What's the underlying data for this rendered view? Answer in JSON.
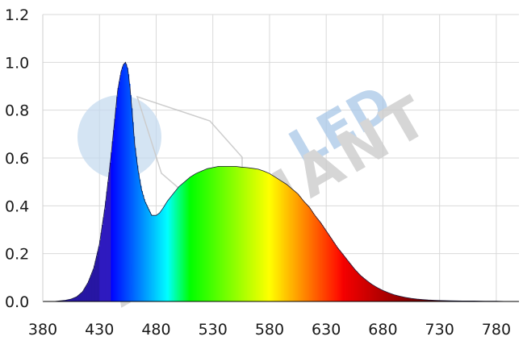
{
  "chart_data": {
    "type": "area",
    "title": "",
    "xlabel": "",
    "ylabel": "",
    "xlim": [
      380,
      800
    ],
    "ylim": [
      0,
      1.2
    ],
    "x_ticks": [
      "380",
      "430",
      "480",
      "530",
      "580",
      "630",
      "680",
      "730",
      "780"
    ],
    "y_ticks": [
      "0.0",
      "0.2",
      "0.4",
      "0.6",
      "0.8",
      "1.0",
      "1.2"
    ],
    "grid": true,
    "fill": "wavelength-colored spectrum",
    "series": [
      {
        "x": [
          380,
          390,
          400,
          405,
          410,
          415,
          420,
          425,
          430,
          435,
          440,
          443,
          446,
          449,
          451,
          453,
          455,
          457,
          459,
          461,
          464,
          467,
          470,
          473,
          476,
          480,
          483,
          486,
          490,
          495,
          500,
          505,
          510,
          515,
          520,
          525,
          530,
          535,
          540,
          545,
          550,
          555,
          560,
          565,
          570,
          575,
          580,
          585,
          590,
          595,
          600,
          605,
          610,
          615,
          620,
          625,
          630,
          635,
          640,
          645,
          650,
          655,
          660,
          665,
          670,
          675,
          680,
          685,
          690,
          695,
          700,
          705,
          710,
          715,
          720,
          725,
          730,
          740,
          750,
          760,
          770,
          780,
          790,
          800
        ],
        "values": [
          0.0,
          0.0,
          0.005,
          0.01,
          0.02,
          0.04,
          0.08,
          0.14,
          0.24,
          0.4,
          0.6,
          0.74,
          0.88,
          0.96,
          0.99,
          1.0,
          0.97,
          0.89,
          0.78,
          0.66,
          0.55,
          0.47,
          0.42,
          0.39,
          0.36,
          0.36,
          0.37,
          0.39,
          0.42,
          0.45,
          0.48,
          0.5,
          0.52,
          0.535,
          0.545,
          0.555,
          0.56,
          0.565,
          0.565,
          0.565,
          0.565,
          0.562,
          0.56,
          0.557,
          0.553,
          0.545,
          0.535,
          0.52,
          0.505,
          0.49,
          0.47,
          0.45,
          0.42,
          0.395,
          0.36,
          0.33,
          0.295,
          0.26,
          0.225,
          0.195,
          0.165,
          0.135,
          0.11,
          0.09,
          0.072,
          0.058,
          0.046,
          0.036,
          0.028,
          0.022,
          0.017,
          0.013,
          0.01,
          0.008,
          0.006,
          0.005,
          0.004,
          0.003,
          0.002,
          0.002,
          0.001,
          0.001,
          0.0,
          0.0
        ]
      }
    ]
  },
  "watermark": {
    "line1": "LED",
    "line2": "ATONIANT"
  },
  "colors": {
    "grid": "#d9d9d9",
    "axis": "#000000",
    "watermark_blue": "#a9c8e8",
    "watermark_grey": "#c9c9c9"
  }
}
